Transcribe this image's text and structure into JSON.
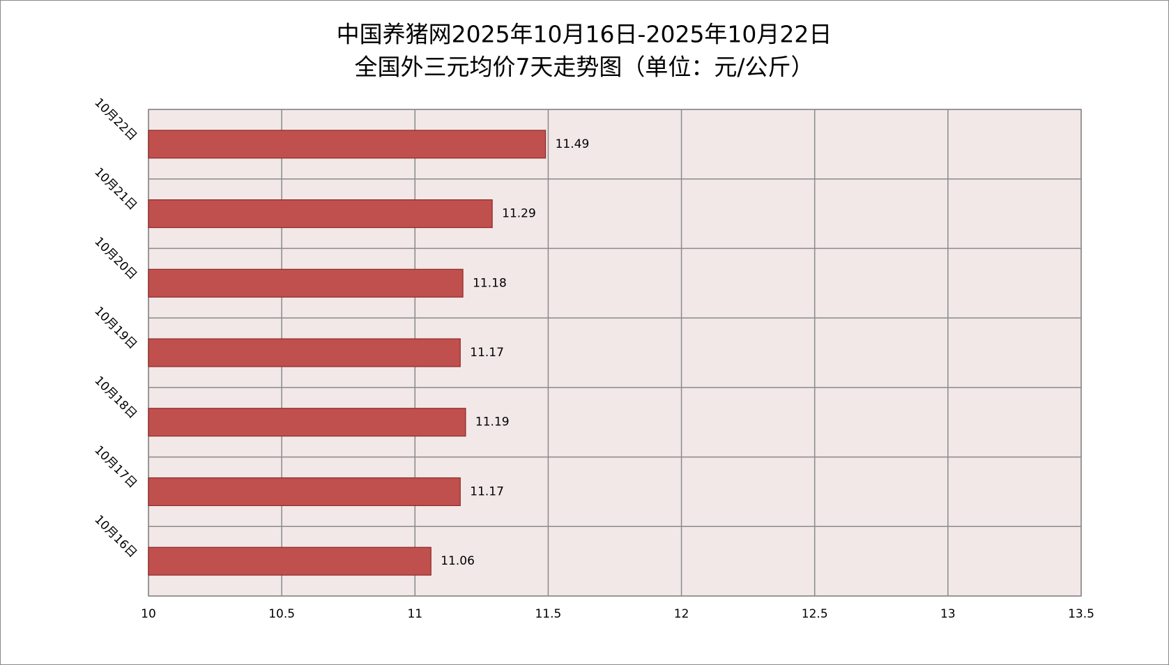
{
  "chart_data": {
    "type": "bar",
    "orientation": "horizontal",
    "title": [
      "中国养猪网2025年10月16日-2025年10月22日",
      "全国外三元均价7天走势图（单位：元/公斤）"
    ],
    "categories": [
      "10月16日",
      "10月17日",
      "10月18日",
      "10月19日",
      "10月20日",
      "10月21日",
      "10月22日"
    ],
    "values": [
      11.06,
      11.17,
      11.19,
      11.17,
      11.18,
      11.29,
      11.49
    ],
    "color": "#c0504d",
    "edge_color": "#8c2a28",
    "plot_background": "#f2e8e8",
    "grid_color": "#8a8a8a",
    "xlim": [
      10,
      13.5
    ],
    "xticks": [
      10,
      10.5,
      11,
      11.5,
      12,
      12.5,
      13,
      13.5
    ],
    "grid": true
  }
}
